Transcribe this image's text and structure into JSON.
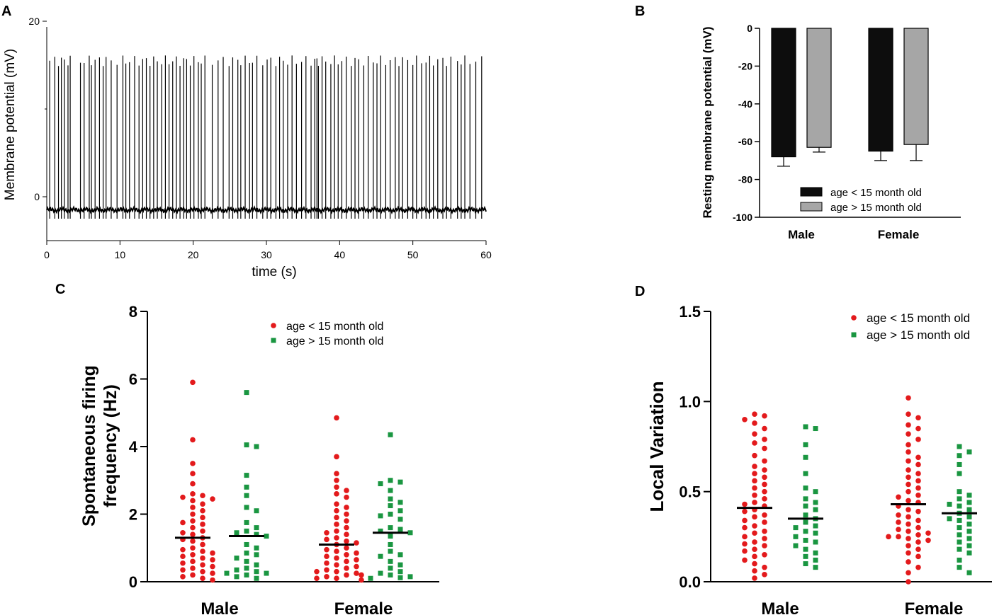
{
  "colors": {
    "black": "#000000",
    "red": "#e31a1c",
    "green": "#1a9641",
    "dark_bar": "#0d0d0d",
    "gray_bar": "#a6a6a6"
  },
  "chart_data": [
    {
      "panel": "A",
      "type": "line",
      "title": "",
      "xlabel": "time (s)",
      "ylabel": "Membrane potential (mV)",
      "xlim": [
        0,
        60
      ],
      "ylim": [
        -5,
        20
      ],
      "xticks": [
        0,
        10,
        20,
        30,
        40,
        50,
        60
      ],
      "yticks": [
        0,
        20
      ],
      "baseline_mv": -1.5,
      "spike_times_s": [
        0.4,
        1.1,
        1.6,
        2.0,
        2.4,
        2.9,
        3.2,
        4.6,
        5.1,
        5.8,
        6.1,
        6.6,
        7.2,
        7.7,
        8.1,
        8.8,
        9.6,
        10.4,
        10.8,
        11.3,
        12.0,
        12.6,
        13.1,
        13.6,
        14.1,
        14.6,
        15.1,
        15.7,
        16.2,
        16.7,
        17.2,
        17.7,
        18.2,
        18.7,
        19.1,
        19.6,
        20.1,
        20.7,
        21.1,
        21.6,
        22.6,
        23.4,
        24.1,
        24.9,
        25.4,
        26.1,
        26.5,
        27.1,
        27.7,
        28.1,
        28.7,
        29.5,
        30.1,
        30.6,
        31.3,
        31.8,
        32.3,
        32.9,
        33.5,
        34.1,
        34.8,
        35.4,
        36.1,
        36.6,
        36.9,
        37.1,
        37.6,
        38.1,
        38.8,
        39.3,
        39.8,
        40.3,
        40.9,
        41.6,
        42.1,
        42.6,
        43.3,
        43.9,
        44.6,
        45.1,
        45.6,
        46.3,
        46.9,
        47.6,
        48.1,
        48.6,
        49.3,
        50.0,
        50.5,
        51.2,
        51.8,
        52.3,
        52.8,
        53.4,
        54.1,
        54.6,
        55.2,
        56.1,
        56.6,
        57.1,
        57.8,
        58.6,
        59.4
      ],
      "spike_peak_mv": 15.5
    },
    {
      "panel": "B",
      "type": "bar",
      "title": "",
      "xlabel": "",
      "ylabel": "Resting membrane potential (mV)",
      "categories": [
        "Male",
        "Female"
      ],
      "ylim": [
        -100,
        0
      ],
      "yticks": [
        "0",
        "-20",
        "-40",
        "-60",
        "-80",
        "-100"
      ],
      "series": [
        {
          "name": "age < 15 month old",
          "values": [
            -68,
            -65
          ],
          "errors": [
            5,
            5
          ]
        },
        {
          "name": "age > 15 month old",
          "values": [
            -63,
            -61.5
          ],
          "errors": [
            2.5,
            8.5
          ]
        }
      ],
      "legend": "bottom-right"
    },
    {
      "panel": "C",
      "type": "scatter",
      "title": "",
      "xlabel": "",
      "ylabel": "Spontaneous firing frequency (Hz)",
      "ylabel_lines": [
        "Spontaneous firing",
        "frequency (Hz)"
      ],
      "categories": [
        "Male",
        "Female"
      ],
      "ylim": [
        0,
        8
      ],
      "yticks": [
        "0",
        "2",
        "4",
        "6",
        "8"
      ],
      "series": [
        {
          "name": "age < 15 month old",
          "marker": "circle",
          "groups": [
            {
              "category": "Male",
              "mean": 1.3,
              "values": [
                5.9,
                4.2,
                3.5,
                3.2,
                2.9,
                2.6,
                2.55,
                2.5,
                2.45,
                2.4,
                2.3,
                2.2,
                2.1,
                2.0,
                1.9,
                1.8,
                1.75,
                1.7,
                1.6,
                1.5,
                1.45,
                1.4,
                1.3,
                1.25,
                1.2,
                1.1,
                1.0,
                0.95,
                0.9,
                0.85,
                0.8,
                0.75,
                0.7,
                0.65,
                0.6,
                0.55,
                0.5,
                0.45,
                0.4,
                0.35,
                0.3,
                0.25,
                0.2,
                0.15,
                0.1,
                0.05
              ]
            },
            {
              "category": "Female",
              "mean": 1.1,
              "values": [
                4.85,
                3.7,
                3.2,
                3.0,
                2.8,
                2.7,
                2.6,
                2.5,
                2.3,
                2.2,
                2.1,
                2.0,
                1.9,
                1.8,
                1.7,
                1.6,
                1.5,
                1.45,
                1.4,
                1.3,
                1.25,
                1.2,
                1.15,
                1.1,
                1.0,
                0.95,
                0.9,
                0.85,
                0.8,
                0.75,
                0.7,
                0.65,
                0.6,
                0.55,
                0.5,
                0.45,
                0.4,
                0.35,
                0.3,
                0.3,
                0.25,
                0.2,
                0.2,
                0.15,
                0.1,
                0.1,
                0.05
              ]
            }
          ]
        },
        {
          "name": "age > 15 month old",
          "marker": "square",
          "groups": [
            {
              "category": "Male",
              "mean": 1.35,
              "values": [
                5.6,
                4.05,
                4.0,
                3.15,
                2.8,
                2.55,
                2.2,
                2.1,
                1.75,
                1.6,
                1.5,
                1.45,
                1.4,
                1.35,
                1.1,
                1.0,
                0.85,
                0.8,
                0.7,
                0.6,
                0.5,
                0.4,
                0.35,
                0.3,
                0.25,
                0.25,
                0.2,
                0.15,
                0.1
              ]
            },
            {
              "category": "Female",
              "mean": 1.45,
              "values": [
                4.35,
                3.0,
                2.95,
                2.9,
                2.7,
                2.45,
                2.35,
                2.25,
                2.1,
                2.0,
                1.95,
                1.85,
                1.6,
                1.55,
                1.5,
                1.45,
                1.35,
                1.1,
                0.9,
                0.8,
                0.75,
                0.6,
                0.5,
                0.4,
                0.3,
                0.25,
                0.2,
                0.15,
                0.12,
                0.1
              ]
            }
          ]
        }
      ],
      "legend": "top-right"
    },
    {
      "panel": "D",
      "type": "scatter",
      "title": "",
      "xlabel": "",
      "ylabel": "Local Variation",
      "categories": [
        "Male",
        "Female"
      ],
      "ylim": [
        0,
        1.5
      ],
      "yticks": [
        "0.0",
        "0.5",
        "1.0",
        "1.5"
      ],
      "series": [
        {
          "name": "age < 15 month old",
          "marker": "circle",
          "groups": [
            {
              "category": "Male",
              "mean": 0.41,
              "values": [
                0.93,
                0.92,
                0.9,
                0.88,
                0.85,
                0.82,
                0.79,
                0.77,
                0.74,
                0.7,
                0.67,
                0.64,
                0.62,
                0.6,
                0.58,
                0.56,
                0.54,
                0.52,
                0.5,
                0.48,
                0.46,
                0.44,
                0.43,
                0.42,
                0.4,
                0.39,
                0.37,
                0.36,
                0.34,
                0.33,
                0.31,
                0.3,
                0.28,
                0.27,
                0.25,
                0.24,
                0.22,
                0.21,
                0.2,
                0.18,
                0.17,
                0.15,
                0.14,
                0.12,
                0.1,
                0.08,
                0.06,
                0.04,
                0.02
              ]
            },
            {
              "category": "Female",
              "mean": 0.43,
              "values": [
                1.02,
                0.93,
                0.91,
                0.87,
                0.85,
                0.82,
                0.79,
                0.76,
                0.72,
                0.69,
                0.67,
                0.65,
                0.62,
                0.6,
                0.58,
                0.56,
                0.54,
                0.52,
                0.5,
                0.48,
                0.47,
                0.45,
                0.44,
                0.42,
                0.4,
                0.39,
                0.37,
                0.36,
                0.34,
                0.33,
                0.32,
                0.3,
                0.29,
                0.28,
                0.27,
                0.26,
                0.25,
                0.25,
                0.24,
                0.23,
                0.22,
                0.2,
                0.18,
                0.16,
                0.14,
                0.11,
                0.08,
                0.05,
                0.0
              ]
            }
          ]
        },
        {
          "name": "age > 15 month old",
          "marker": "square",
          "groups": [
            {
              "category": "Male",
              "mean": 0.35,
              "values": [
                0.86,
                0.85,
                0.76,
                0.69,
                0.6,
                0.52,
                0.5,
                0.46,
                0.44,
                0.42,
                0.4,
                0.37,
                0.35,
                0.33,
                0.31,
                0.3,
                0.28,
                0.27,
                0.25,
                0.23,
                0.22,
                0.2,
                0.18,
                0.16,
                0.14,
                0.12,
                0.1,
                0.08
              ]
            },
            {
              "category": "Female",
              "mean": 0.38,
              "values": [
                0.75,
                0.72,
                0.7,
                0.65,
                0.6,
                0.5,
                0.48,
                0.46,
                0.44,
                0.43,
                0.42,
                0.4,
                0.38,
                0.36,
                0.35,
                0.34,
                0.32,
                0.3,
                0.28,
                0.26,
                0.24,
                0.22,
                0.2,
                0.18,
                0.16,
                0.12,
                0.08,
                0.05
              ]
            }
          ]
        }
      ],
      "legend": "top-right"
    }
  ]
}
